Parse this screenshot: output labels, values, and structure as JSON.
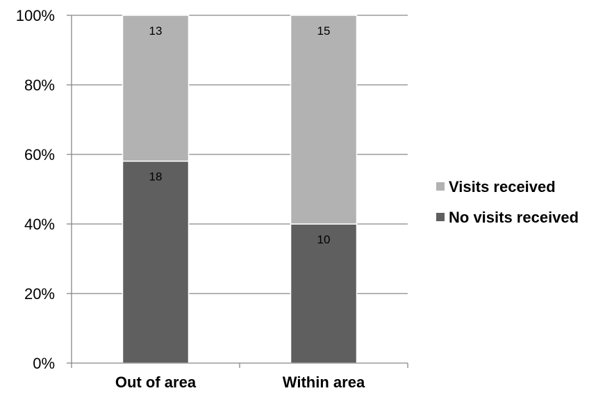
{
  "chart_data": {
    "type": "bar",
    "stacked": true,
    "percent_stacked": true,
    "categories": [
      "Out of area",
      "Within area"
    ],
    "series": [
      {
        "name": "No visits received",
        "values": [
          18,
          10
        ],
        "color": "#5f5f5f"
      },
      {
        "name": "Visits received",
        "values": [
          13,
          15
        ],
        "color": "#b2b2b2"
      }
    ],
    "yticks": [
      "0%",
      "20%",
      "40%",
      "60%",
      "80%",
      "100%"
    ],
    "ylim": [
      0,
      100
    ],
    "grid": true,
    "legend_position": "right",
    "legend_order": [
      "Visits received",
      "No visits received"
    ],
    "data_labels": true
  }
}
